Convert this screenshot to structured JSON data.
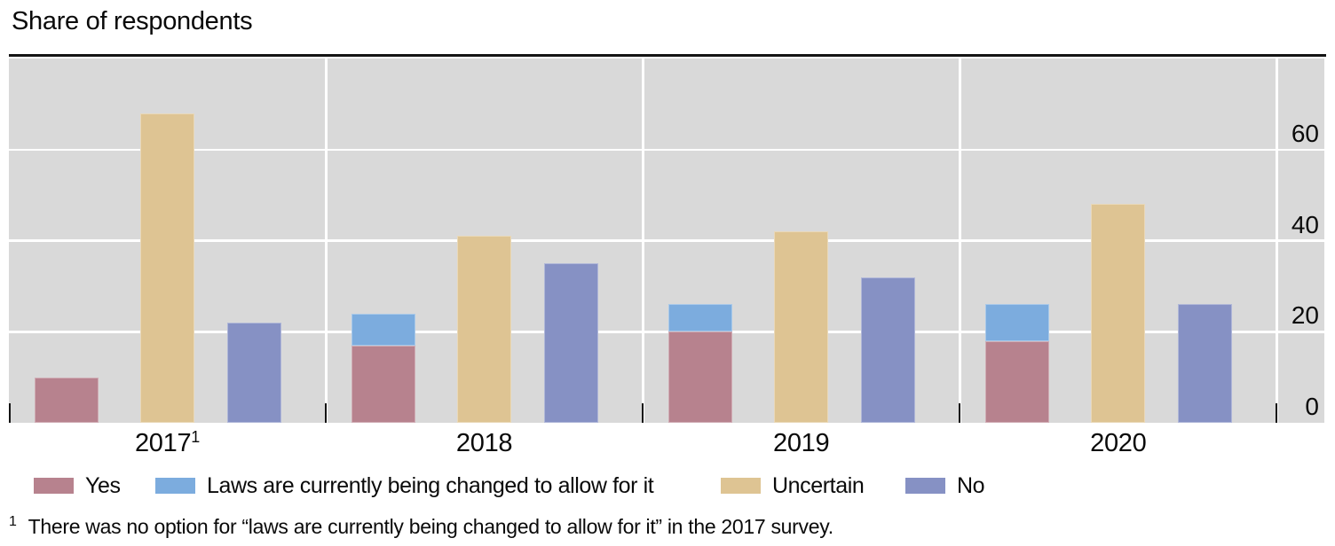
{
  "title": "Share of respondents",
  "y_axis": {
    "tick_labels": [
      "0",
      "20",
      "40",
      "60"
    ]
  },
  "x_axis": {
    "labels": [
      "2017",
      "2018",
      "2019",
      "2020"
    ],
    "superscripts": [
      "1",
      "",
      "",
      ""
    ]
  },
  "legend": {
    "items": [
      {
        "label": "Yes",
        "color": "#b7828e"
      },
      {
        "label": "Laws are currently being changed to allow for it",
        "color": "#7cacde"
      },
      {
        "label": "Uncertain",
        "color": "#dec493"
      },
      {
        "label": "No",
        "color": "#8691c4"
      }
    ]
  },
  "footnote": {
    "marker": "1",
    "text": "There was no option for “laws are currently being changed to allow for it” in the 2017 survey."
  },
  "colors": {
    "panel": "#d9d9d9",
    "gridline": "#ffffff",
    "rule": "#141414",
    "tick": "#141414"
  },
  "chart_data": {
    "type": "bar",
    "title": "Share of respondents",
    "categories": [
      "2017",
      "2018",
      "2019",
      "2020"
    ],
    "series": [
      {
        "name": "Yes",
        "color": "#b7828e",
        "values": [
          10,
          17,
          20,
          18
        ]
      },
      {
        "name": "Laws are currently being changed to allow for it",
        "color": "#7cacde",
        "values": [
          null,
          7,
          6,
          8
        ]
      },
      {
        "name": "Uncertain",
        "color": "#dec493",
        "values": [
          68,
          41,
          42,
          48
        ]
      },
      {
        "name": "No",
        "color": "#8691c4",
        "values": [
          22,
          35,
          32,
          26
        ]
      }
    ],
    "stacks": [
      [
        "Yes",
        "Laws are currently being changed to allow for it"
      ],
      [
        "Uncertain"
      ],
      [
        "No"
      ]
    ],
    "xlabel": "",
    "ylabel": "",
    "ylim": [
      0,
      80
    ],
    "yticks": [
      0,
      20,
      40,
      60
    ],
    "grid": true,
    "gridline_color": "white",
    "panel_color": "gray",
    "legend_position": "bottom-left",
    "y_axis_side": "right"
  }
}
